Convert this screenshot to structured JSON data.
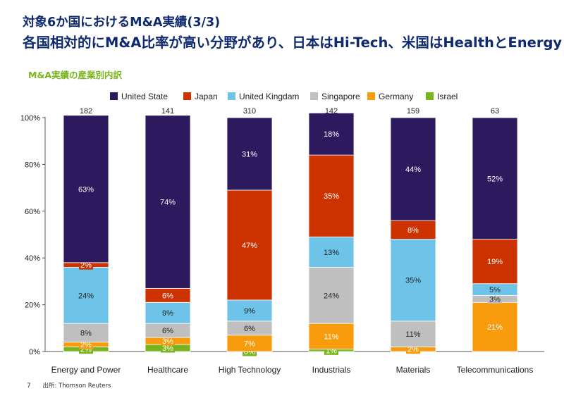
{
  "header": {
    "title_line1": "対象6か国におけるM&A実績(3/3)",
    "title_line2": "各国相対的にM&A比率が高い分野があり、日本はHi-Tech、米国はHealthとEnergy"
  },
  "subtitle": "M&A実績の産業別内訳",
  "footer": {
    "page": "7",
    "source": "出所: Thomson Reuters"
  },
  "colors": {
    "United State": "#2d1a5e",
    "Japan": "#cc3300",
    "United Kingdam": "#6ec4e8",
    "Singapore": "#bfbfbf",
    "Germany": "#f89c0e",
    "Israel": "#7ab51d"
  },
  "chart_data": {
    "type": "bar",
    "stacked": true,
    "normalized": true,
    "categories": [
      "Energy and Power",
      "Healthcare",
      "High Technology",
      "Industrials",
      "Materials",
      "Telecommunications"
    ],
    "totals": [
      "182",
      "141",
      "310",
      "142",
      "159",
      "63"
    ],
    "y_ticks": [
      "0%",
      "20%",
      "40%",
      "60%",
      "80%",
      "100%"
    ],
    "ylim": [
      0,
      100
    ],
    "legend_position": "top",
    "series": [
      {
        "name": "Israel",
        "values": [
          2,
          3,
          0,
          1,
          0,
          0
        ],
        "labels": [
          "2%",
          "3%",
          "0%",
          "1%",
          "",
          ""
        ]
      },
      {
        "name": "Germany",
        "values": [
          2,
          3,
          7,
          11,
          2,
          21
        ],
        "labels": [
          "2%",
          "3%",
          "7%",
          "11%",
          "2%",
          "21%"
        ]
      },
      {
        "name": "Singapore",
        "values": [
          8,
          6,
          6,
          24,
          11,
          3
        ],
        "labels": [
          "8%",
          "6%",
          "6%",
          "24%",
          "11%",
          "3%"
        ]
      },
      {
        "name": "United Kingdam",
        "values": [
          24,
          9,
          9,
          13,
          35,
          5
        ],
        "labels": [
          "24%",
          "9%",
          "9%",
          "13%",
          "35%",
          "5%"
        ]
      },
      {
        "name": "Japan",
        "values": [
          2,
          6,
          47,
          35,
          8,
          19
        ],
        "labels": [
          "2%",
          "6%",
          "47%",
          "35%",
          "8%",
          "19%"
        ]
      },
      {
        "name": "United State",
        "values": [
          63,
          74,
          31,
          18,
          44,
          52
        ],
        "labels": [
          "63%",
          "74%",
          "31%",
          "18%",
          "44%",
          "52%"
        ]
      }
    ],
    "legend_order": [
      "United State",
      "Japan",
      "United Kingdam",
      "Singapore",
      "Germany",
      "Israel"
    ]
  }
}
